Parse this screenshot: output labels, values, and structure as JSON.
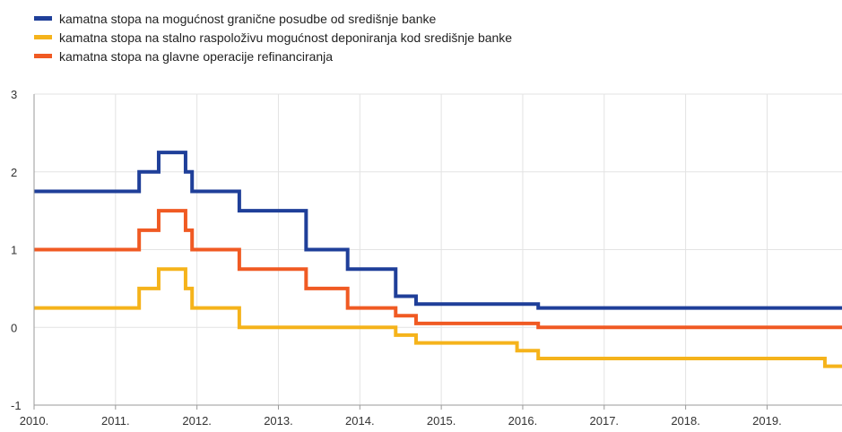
{
  "chart_data": {
    "type": "line",
    "title": "",
    "xlabel": "",
    "ylabel": "",
    "ylim": [
      -1,
      3
    ],
    "xlim": [
      2010,
      2019.92
    ],
    "yticks": [
      "3",
      "2",
      "1",
      "0",
      "-1"
    ],
    "xticks": [
      "2010.",
      "2011.",
      "2012.",
      "2013.",
      "2014.",
      "2015.",
      "2016.",
      "2017.",
      "2018.",
      "2019."
    ],
    "grid": true,
    "legend_position": "top-left",
    "series": [
      {
        "name": "kamatna stopa na mogućnost granične posudbe od središnje banke",
        "color": "#1f3f99",
        "step": true,
        "points": [
          [
            2010.0,
            1.75
          ],
          [
            2011.29,
            2.0
          ],
          [
            2011.53,
            2.25
          ],
          [
            2011.86,
            2.0
          ],
          [
            2011.94,
            1.75
          ],
          [
            2012.52,
            1.5
          ],
          [
            2013.34,
            1.0
          ],
          [
            2013.85,
            0.75
          ],
          [
            2014.44,
            0.4
          ],
          [
            2014.69,
            0.3
          ],
          [
            2016.19,
            0.25
          ],
          [
            2019.92,
            0.25
          ]
        ]
      },
      {
        "name": "kamatna stopa na stalno raspoloživu mogućnost deponiranja kod središnje banke",
        "color": "#f5b31b",
        "step": true,
        "points": [
          [
            2010.0,
            0.25
          ],
          [
            2011.29,
            0.5
          ],
          [
            2011.53,
            0.75
          ],
          [
            2011.86,
            0.5
          ],
          [
            2011.94,
            0.25
          ],
          [
            2012.52,
            0.0
          ],
          [
            2014.44,
            -0.1
          ],
          [
            2014.69,
            -0.2
          ],
          [
            2015.93,
            -0.3
          ],
          [
            2016.19,
            -0.4
          ],
          [
            2019.71,
            -0.5
          ],
          [
            2019.92,
            -0.5
          ]
        ]
      },
      {
        "name": "kamatna stopa na glavne operacije refinanciranja",
        "color": "#f05a23",
        "step": true,
        "points": [
          [
            2010.0,
            1.0
          ],
          [
            2011.29,
            1.25
          ],
          [
            2011.53,
            1.5
          ],
          [
            2011.86,
            1.25
          ],
          [
            2011.94,
            1.0
          ],
          [
            2012.52,
            0.75
          ],
          [
            2013.34,
            0.5
          ],
          [
            2013.85,
            0.25
          ],
          [
            2014.44,
            0.15
          ],
          [
            2014.69,
            0.05
          ],
          [
            2016.19,
            0.0
          ],
          [
            2019.92,
            0.0
          ]
        ]
      }
    ]
  }
}
